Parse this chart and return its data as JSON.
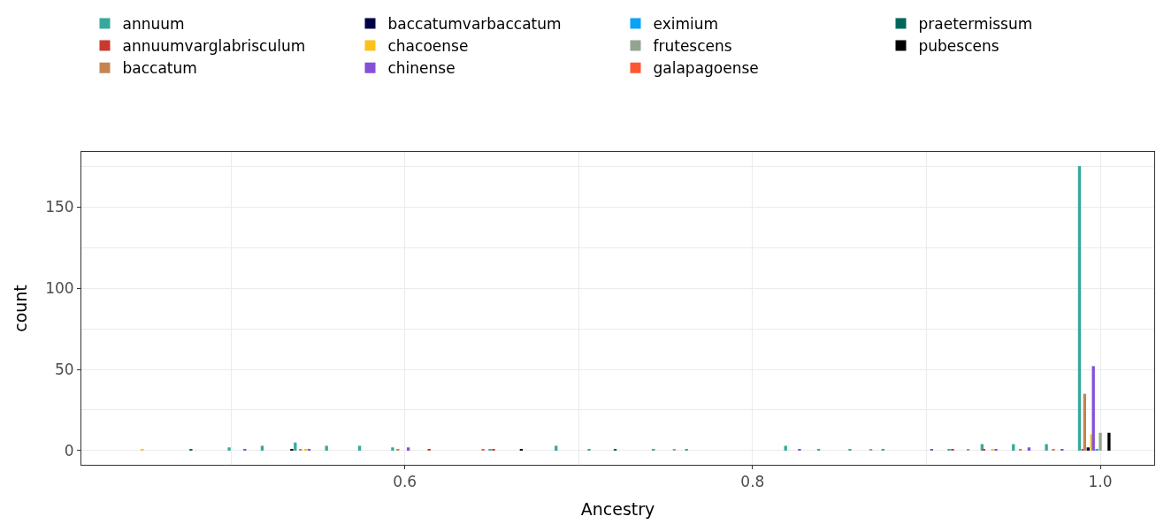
{
  "chart_data": {
    "type": "bar",
    "xlabel": "Ancestry",
    "ylabel": "count",
    "xlim": [
      0.414,
      1.031
    ],
    "xticks": [
      0.6,
      0.8,
      {
        "value": 1.0,
        "label": "1.0"
      }
    ],
    "ylim": [
      -8.7,
      183.7
    ],
    "yticks": [
      0,
      50,
      100,
      150
    ],
    "grid": true,
    "legend": "top",
    "series": [
      {
        "name": "annuum",
        "color": "#36a99c",
        "x": [
          0.499,
          0.518,
          0.537,
          0.555,
          0.574,
          0.593,
          0.649,
          0.687,
          0.706,
          0.743,
          0.762,
          0.819,
          0.838,
          0.856,
          0.875,
          0.913,
          0.932,
          0.95,
          0.969,
          0.988
        ],
        "values": [
          2,
          3,
          5,
          3,
          3,
          2,
          1,
          3,
          1,
          1,
          1,
          3,
          1,
          1,
          1,
          1,
          4,
          4,
          4,
          175
        ]
      },
      {
        "name": "annuumvarglabrisculum",
        "color": "#c83a2e",
        "x": [
          0.614,
          0.651,
          0.915,
          0.933,
          0.99
        ],
        "values": [
          1,
          1,
          1,
          1,
          1
        ]
      },
      {
        "name": "baccatum",
        "color": "#c58451",
        "x": [
          0.54,
          0.596,
          0.954,
          0.973,
          0.991
        ],
        "values": [
          1,
          1,
          1,
          1,
          35
        ]
      },
      {
        "name": "baccatumvarbaccatum",
        "color": "#000047",
        "x": [
          0.993
        ],
        "values": [
          2
        ]
      },
      {
        "name": "chacoense",
        "color": "#fcc21a",
        "x": [
          0.449,
          0.543,
          0.938,
          0.995
        ],
        "values": [
          1,
          1,
          1,
          10
        ]
      },
      {
        "name": "chinense",
        "color": "#8550d8",
        "x": [
          0.508,
          0.545,
          0.602,
          0.827,
          0.903,
          0.94,
          0.959,
          0.978,
          0.996
        ],
        "values": [
          1,
          1,
          2,
          1,
          1,
          1,
          2,
          1,
          52
        ]
      },
      {
        "name": "eximium",
        "color": "#0aa3f6",
        "x": [
          0.998
        ],
        "values": [
          1
        ]
      },
      {
        "name": "frutescens",
        "color": "#93a58e",
        "x": [
          0.755,
          0.868,
          0.924,
          1.0
        ],
        "values": [
          1,
          1,
          1,
          11
        ]
      },
      {
        "name": "galapagoense",
        "color": "#ff5733",
        "x": [
          0.645
        ],
        "values": [
          1
        ]
      },
      {
        "name": "praetermissum",
        "color": "#00665a",
        "x": [
          0.477,
          0.721
        ],
        "values": [
          1,
          1
        ]
      },
      {
        "name": "pubescens",
        "color": "#000000",
        "x": [
          0.535,
          0.667,
          1.005
        ],
        "values": [
          1,
          1,
          11
        ]
      }
    ]
  }
}
